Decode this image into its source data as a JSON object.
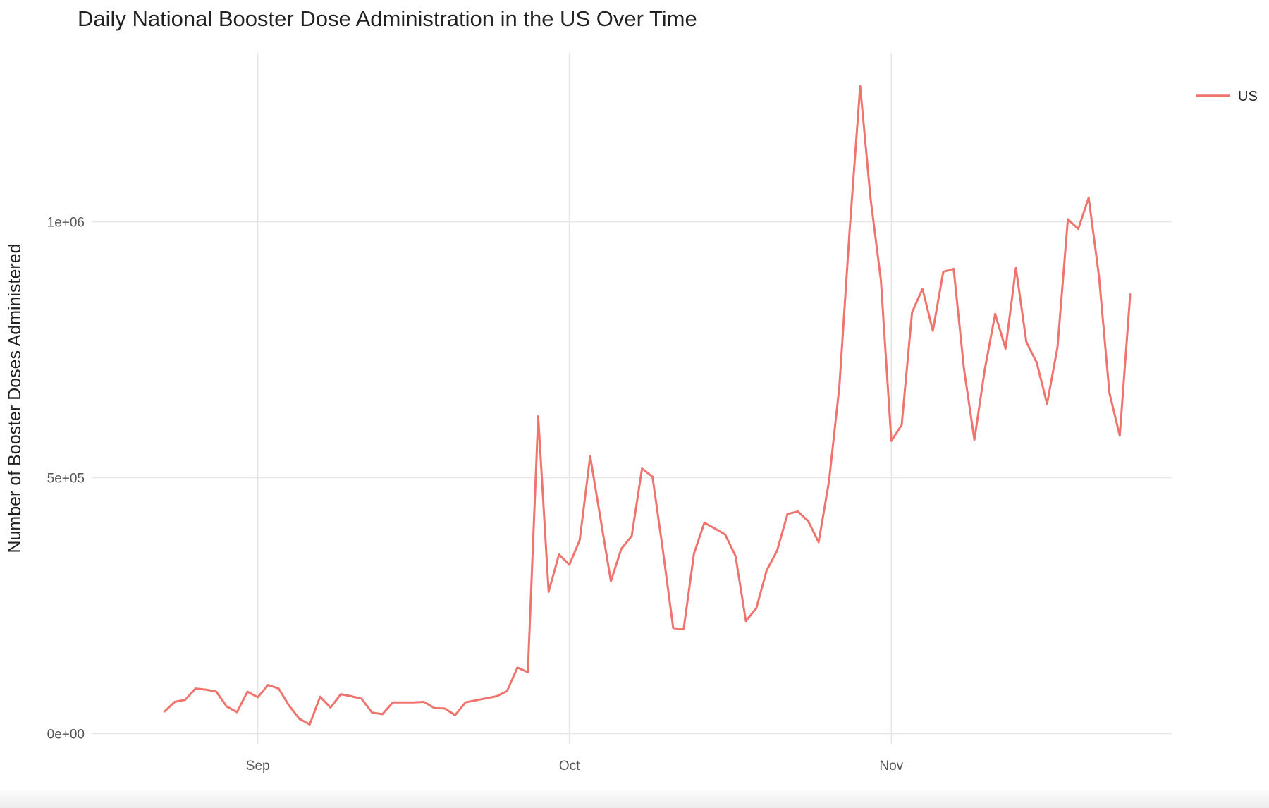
{
  "chart_data": {
    "type": "line",
    "title": "Daily National Booster Dose Administration in the US Over Time",
    "xlabel": "",
    "ylabel": "Number of Booster Doses Administered",
    "x_start": "2021-08-23",
    "x_ticks": [
      {
        "label": "Sep",
        "date": "2021-09-01"
      },
      {
        "label": "Oct",
        "date": "2021-10-01"
      },
      {
        "label": "Nov",
        "date": "2021-11-01"
      }
    ],
    "y_ticks": [
      {
        "label": "0e+00",
        "value": 0
      },
      {
        "label": "5e+05",
        "value": 500000
      },
      {
        "label": "1e+06",
        "value": 1000000
      }
    ],
    "xlim": [
      "2021-08-16",
      "2021-11-28"
    ],
    "ylim": [
      -20000,
      1330000
    ],
    "grid": true,
    "legend": "top-right",
    "series": [
      {
        "name": "US",
        "color": "#F0746E",
        "values": [
          43000,
          62000,
          66000,
          88000,
          86000,
          82000,
          53000,
          42000,
          82000,
          71000,
          95000,
          88000,
          55000,
          29000,
          18000,
          72000,
          51000,
          77000,
          73000,
          68000,
          41000,
          38000,
          61000,
          61000,
          61000,
          62000,
          50000,
          49000,
          36000,
          61000,
          65000,
          69000,
          73000,
          83000,
          129000,
          120000,
          620000,
          277000,
          350000,
          330000,
          378000,
          542000,
          420000,
          298000,
          361000,
          386000,
          518000,
          502000,
          359000,
          206000,
          204000,
          352000,
          412000,
          401000,
          389000,
          347000,
          220000,
          245000,
          319000,
          357000,
          429000,
          434000,
          415000,
          374000,
          493000,
          678000,
          986000,
          1265000,
          1046000,
          886000,
          572000,
          603000,
          823000,
          869000,
          787000,
          902000,
          908000,
          712000,
          574000,
          711000,
          820000,
          752000,
          910000,
          765000,
          725000,
          644000,
          755000,
          1005000,
          986000,
          1047000,
          893000,
          666000,
          582000,
          858000
        ]
      }
    ]
  }
}
